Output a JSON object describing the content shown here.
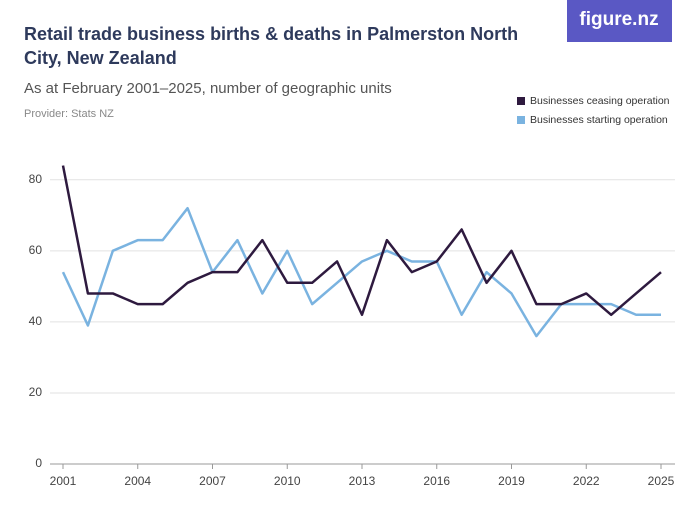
{
  "chart_data": {
    "type": "line",
    "title": "Retail trade business births & deaths in Palmerston North City, New Zealand",
    "subtitle": "As at February 2001–2025, number of geographic units",
    "provider": "Provider: Stats NZ",
    "brand": "figure.nz",
    "x": [
      2001,
      2002,
      2003,
      2004,
      2005,
      2006,
      2007,
      2008,
      2009,
      2010,
      2011,
      2012,
      2013,
      2014,
      2015,
      2016,
      2017,
      2018,
      2019,
      2020,
      2021,
      2022,
      2023,
      2024,
      2025
    ],
    "series": [
      {
        "name": "Businesses ceasing operation",
        "color": "#2e1a3f",
        "values": [
          84,
          48,
          48,
          45,
          45,
          51,
          54,
          54,
          63,
          51,
          51,
          57,
          42,
          63,
          54,
          57,
          66,
          51,
          60,
          45,
          45,
          48,
          42,
          48,
          54
        ]
      },
      {
        "name": "Businesses starting operation",
        "color": "#7ab3e0",
        "values": [
          54,
          39,
          60,
          63,
          63,
          72,
          54,
          63,
          48,
          60,
          45,
          51,
          57,
          60,
          57,
          57,
          42,
          54,
          48,
          36,
          45,
          45,
          45,
          42,
          42
        ]
      }
    ],
    "xlim": [
      2001,
      2025
    ],
    "xticks": [
      2001,
      2004,
      2007,
      2010,
      2013,
      2016,
      2019,
      2022,
      2025
    ],
    "ylim": [
      0,
      85
    ],
    "yticks": [
      0,
      20,
      40,
      60,
      80
    ],
    "grid": true,
    "legend": "top-right"
  }
}
